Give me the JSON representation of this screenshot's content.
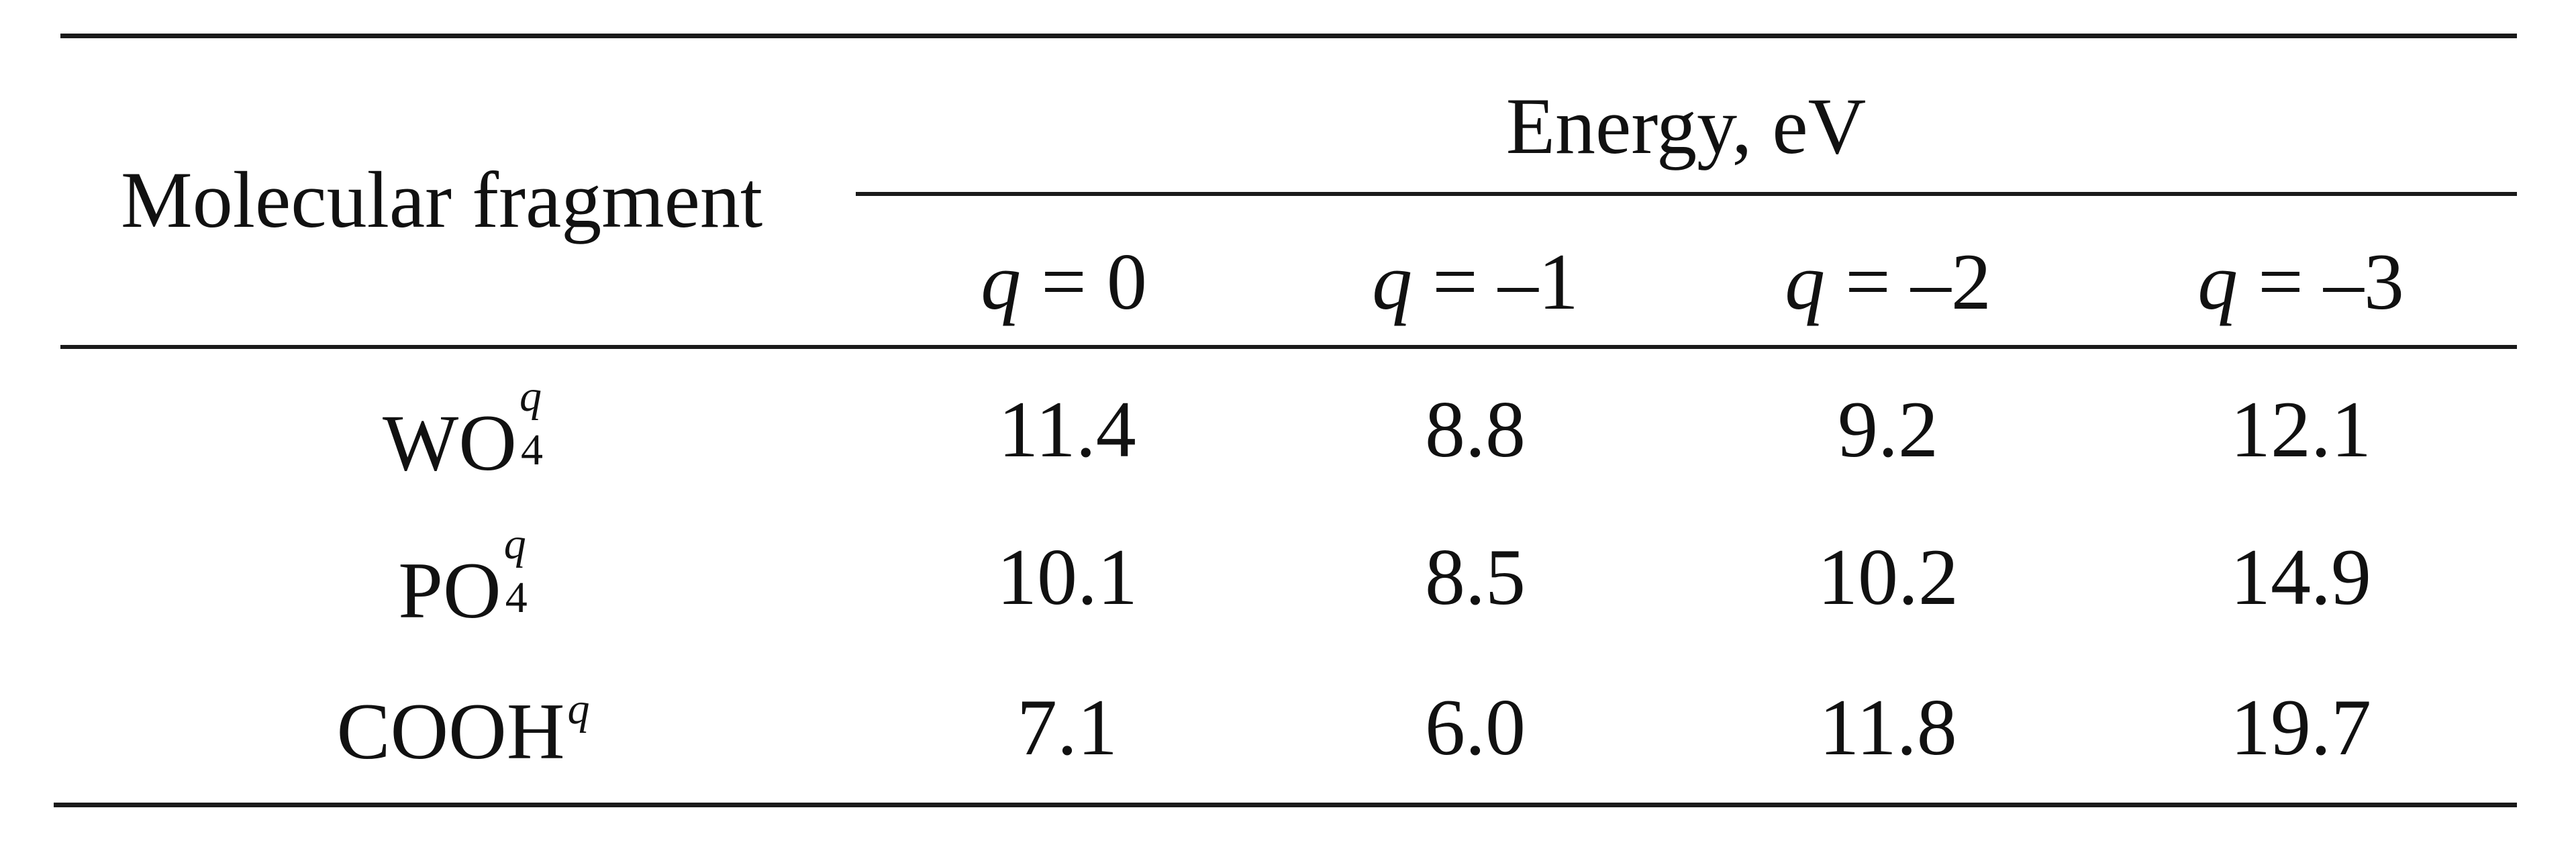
{
  "table": {
    "row_header": "Molecular fragment",
    "group_header": "Energy, eV",
    "charge_symbol": "q",
    "columns": [
      {
        "rel": " = 0"
      },
      {
        "rel": " = –1"
      },
      {
        "rel": " = –2"
      },
      {
        "rel": " = –3"
      }
    ],
    "rows": [
      {
        "base": "WO",
        "sub": "4",
        "sup": "q",
        "values": [
          "11.4",
          "8.8",
          "9.2",
          "12.1"
        ]
      },
      {
        "base": "PO",
        "sub": "4",
        "sup": "q",
        "values": [
          "10.1",
          "8.5",
          "10.2",
          "14.9"
        ]
      },
      {
        "base": "COOH",
        "sup": "q",
        "values": [
          "7.1",
          "6.0",
          "11.8",
          "19.7"
        ]
      }
    ]
  }
}
